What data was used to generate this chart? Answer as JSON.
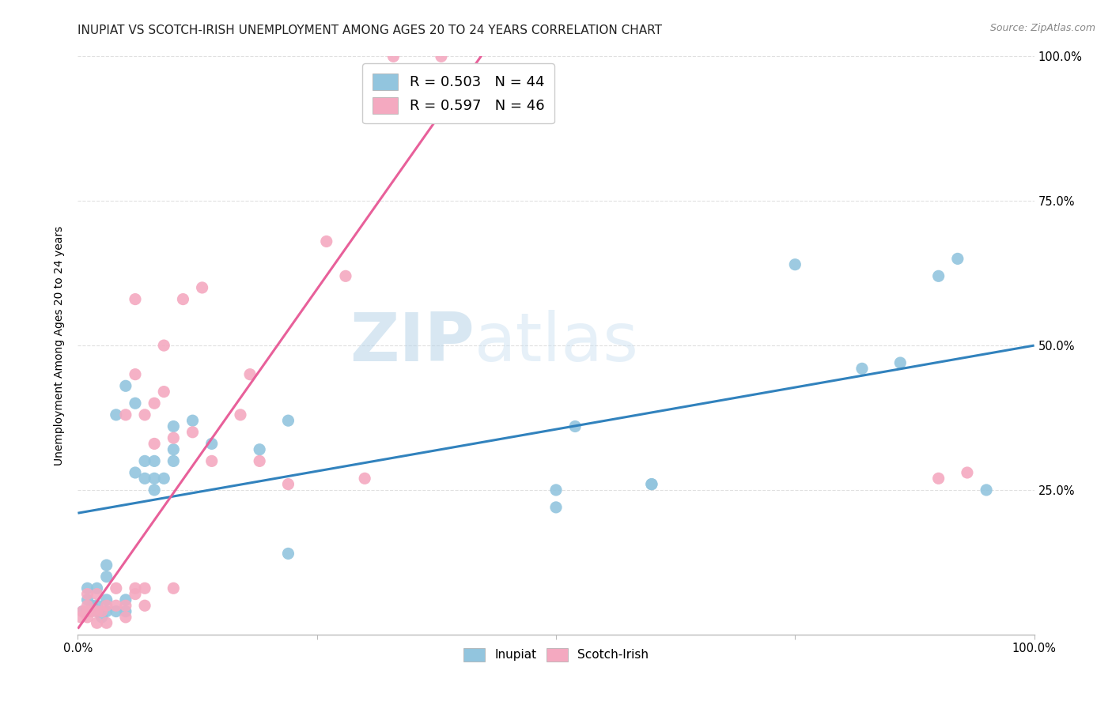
{
  "title": "INUPIAT VS SCOTCH-IRISH UNEMPLOYMENT AMONG AGES 20 TO 24 YEARS CORRELATION CHART",
  "source": "Source: ZipAtlas.com",
  "ylabel": "Unemployment Among Ages 20 to 24 years",
  "watermark_zip": "ZIP",
  "watermark_atlas": "atlas",
  "inupiat_color": "#92c5de",
  "scotch_irish_color": "#f4a9c0",
  "inupiat_line_color": "#3182bd",
  "scotch_irish_line_color": "#e8609a",
  "inupiat_R": 0.503,
  "inupiat_N": 44,
  "scotch_irish_R": 0.597,
  "scotch_irish_N": 46,
  "xlim": [
    0,
    1
  ],
  "ylim": [
    0,
    1
  ],
  "xticks": [
    0.0,
    0.25,
    0.5,
    0.75,
    1.0
  ],
  "xticklabels": [
    "0.0%",
    "",
    "",
    "",
    "100.0%"
  ],
  "yticks": [
    0.25,
    0.5,
    0.75,
    1.0
  ],
  "yticklabels_right": [
    "25.0%",
    "50.0%",
    "75.0%",
    "100.0%"
  ],
  "inupiat_x": [
    0.005,
    0.01,
    0.01,
    0.015,
    0.02,
    0.02,
    0.02,
    0.025,
    0.03,
    0.03,
    0.03,
    0.03,
    0.04,
    0.04,
    0.05,
    0.05,
    0.05,
    0.06,
    0.06,
    0.07,
    0.07,
    0.08,
    0.08,
    0.08,
    0.09,
    0.1,
    0.1,
    0.1,
    0.12,
    0.14,
    0.19,
    0.22,
    0.22,
    0.5,
    0.5,
    0.52,
    0.6,
    0.6,
    0.75,
    0.82,
    0.86,
    0.9,
    0.92,
    0.95
  ],
  "inupiat_y": [
    0.04,
    0.06,
    0.08,
    0.05,
    0.04,
    0.05,
    0.08,
    0.03,
    0.04,
    0.06,
    0.1,
    0.12,
    0.04,
    0.38,
    0.04,
    0.06,
    0.43,
    0.28,
    0.4,
    0.27,
    0.3,
    0.25,
    0.27,
    0.3,
    0.27,
    0.3,
    0.32,
    0.36,
    0.37,
    0.33,
    0.32,
    0.14,
    0.37,
    0.25,
    0.22,
    0.36,
    0.26,
    0.26,
    0.64,
    0.46,
    0.47,
    0.62,
    0.65,
    0.25
  ],
  "scotch_irish_x": [
    0.003,
    0.005,
    0.01,
    0.01,
    0.01,
    0.01,
    0.015,
    0.02,
    0.02,
    0.02,
    0.025,
    0.03,
    0.03,
    0.04,
    0.04,
    0.05,
    0.05,
    0.05,
    0.06,
    0.06,
    0.06,
    0.06,
    0.07,
    0.07,
    0.07,
    0.08,
    0.08,
    0.09,
    0.09,
    0.1,
    0.1,
    0.11,
    0.12,
    0.13,
    0.14,
    0.17,
    0.18,
    0.19,
    0.22,
    0.26,
    0.28,
    0.3,
    0.33,
    0.38,
    0.9,
    0.93
  ],
  "scotch_irish_y": [
    0.03,
    0.04,
    0.03,
    0.04,
    0.05,
    0.07,
    0.04,
    0.02,
    0.04,
    0.07,
    0.04,
    0.02,
    0.05,
    0.05,
    0.08,
    0.03,
    0.05,
    0.38,
    0.07,
    0.08,
    0.45,
    0.58,
    0.05,
    0.08,
    0.38,
    0.33,
    0.4,
    0.42,
    0.5,
    0.08,
    0.34,
    0.58,
    0.35,
    0.6,
    0.3,
    0.38,
    0.45,
    0.3,
    0.26,
    0.68,
    0.62,
    0.27,
    1.0,
    1.0,
    0.27,
    0.28
  ],
  "inupiat_trend_x": [
    0.0,
    1.0
  ],
  "inupiat_trend_y": [
    0.21,
    0.5
  ],
  "scotch_trend_x": [
    0.0,
    0.43
  ],
  "scotch_trend_y": [
    0.01,
    1.02
  ],
  "background_color": "#ffffff",
  "grid_color": "#e0e0e0",
  "title_fontsize": 11,
  "axis_fontsize": 10,
  "tick_fontsize": 10.5,
  "legend_fontsize": 13
}
